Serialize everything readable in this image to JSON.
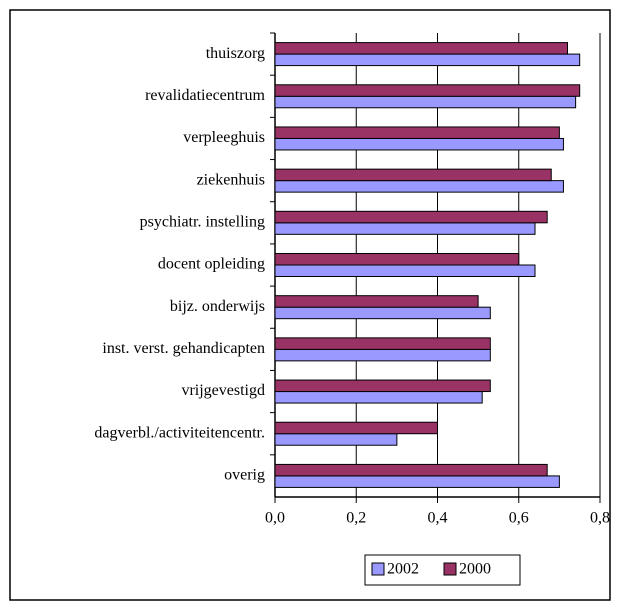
{
  "chart_data": {
    "type": "hbar",
    "categories": [
      "thuiszorg",
      "revalidatiecentrum",
      "verpleeghuis",
      "ziekenhuis",
      "psychiatr. instelling",
      "docent opleiding",
      "bijz. onderwijs",
      "inst. verst. gehandicapten",
      "vrijgevestigd",
      "dagverbl./activiteitencentr.",
      "overig"
    ],
    "series": [
      {
        "name": "2002",
        "color": "#9999ff",
        "values": [
          0.75,
          0.74,
          0.71,
          0.71,
          0.64,
          0.64,
          0.53,
          0.53,
          0.51,
          0.3,
          0.7
        ]
      },
      {
        "name": "2000",
        "color": "#993366",
        "values": [
          0.72,
          0.75,
          0.7,
          0.68,
          0.67,
          0.6,
          0.5,
          0.53,
          0.53,
          0.4,
          0.67
        ]
      }
    ],
    "xlim": [
      0,
      0.8
    ],
    "xticks": [
      {
        "value": 0,
        "label": "0,0"
      },
      {
        "value": 0.2,
        "label": "0,2"
      },
      {
        "value": 0.4,
        "label": "0,4"
      },
      {
        "value": 0.6,
        "label": "0,6"
      },
      {
        "value": 0.8,
        "label": "0,8"
      }
    ],
    "grid": true
  }
}
